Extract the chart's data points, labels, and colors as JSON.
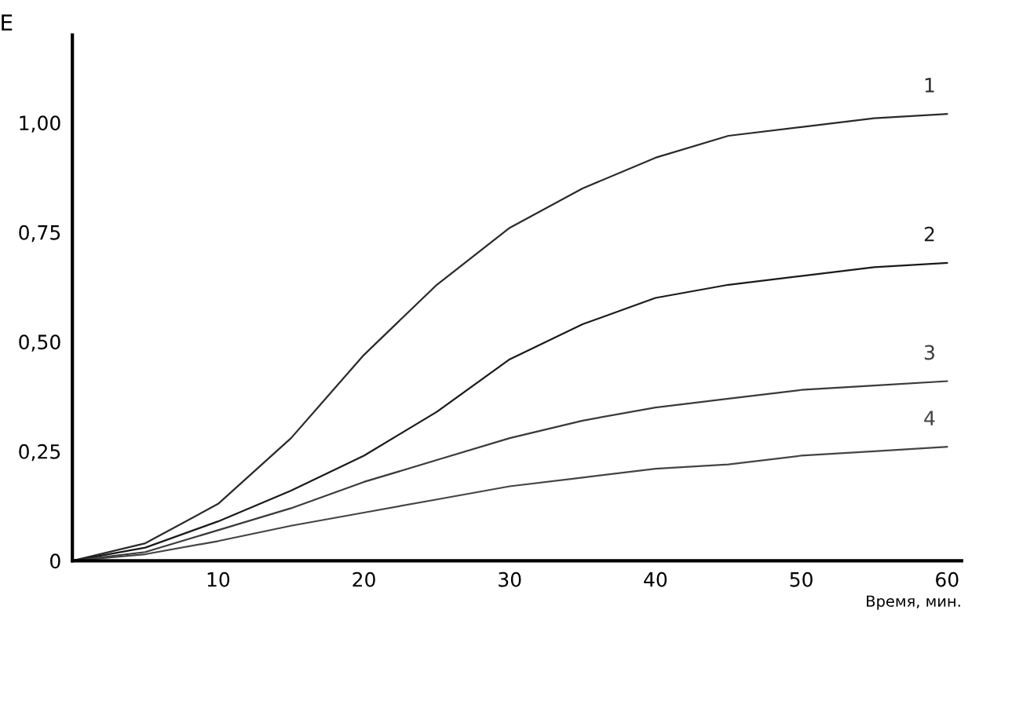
{
  "chart_data": {
    "type": "line",
    "xlabel": "Время, мин.",
    "ylabel": "E",
    "x": [
      0,
      5,
      10,
      15,
      20,
      25,
      30,
      35,
      40,
      45,
      50,
      55,
      60
    ],
    "series": [
      {
        "name": "1",
        "color": "#2a2a2a",
        "values": [
          0,
          0.04,
          0.13,
          0.28,
          0.47,
          0.63,
          0.76,
          0.85,
          0.92,
          0.97,
          0.99,
          1.01,
          1.02
        ]
      },
      {
        "name": "2",
        "color": "#1a1a1a",
        "values": [
          0,
          0.03,
          0.09,
          0.16,
          0.24,
          0.34,
          0.46,
          0.54,
          0.6,
          0.63,
          0.65,
          0.67,
          0.68
        ]
      },
      {
        "name": "3",
        "color": "#3a3a3a",
        "values": [
          0,
          0.02,
          0.07,
          0.12,
          0.18,
          0.23,
          0.28,
          0.32,
          0.35,
          0.37,
          0.39,
          0.4,
          0.41
        ]
      },
      {
        "name": "4",
        "color": "#444444",
        "values": [
          0,
          0.015,
          0.045,
          0.08,
          0.11,
          0.14,
          0.17,
          0.19,
          0.21,
          0.22,
          0.24,
          0.25,
          0.26
        ]
      }
    ],
    "xlim": [
      0,
      61
    ],
    "ylim": [
      0,
      1.2
    ],
    "xticks": [
      10,
      20,
      30,
      40,
      50,
      60
    ],
    "yticks": [
      {
        "value": 0,
        "label": "0"
      },
      {
        "value": 0.25,
        "label": "0,25"
      },
      {
        "value": 0.5,
        "label": "0,50"
      },
      {
        "value": 0.75,
        "label": "0,75"
      },
      {
        "value": 1,
        "label": "1,00"
      }
    ],
    "grid": false,
    "legend": false,
    "marker": "none",
    "line_style": "solid"
  }
}
